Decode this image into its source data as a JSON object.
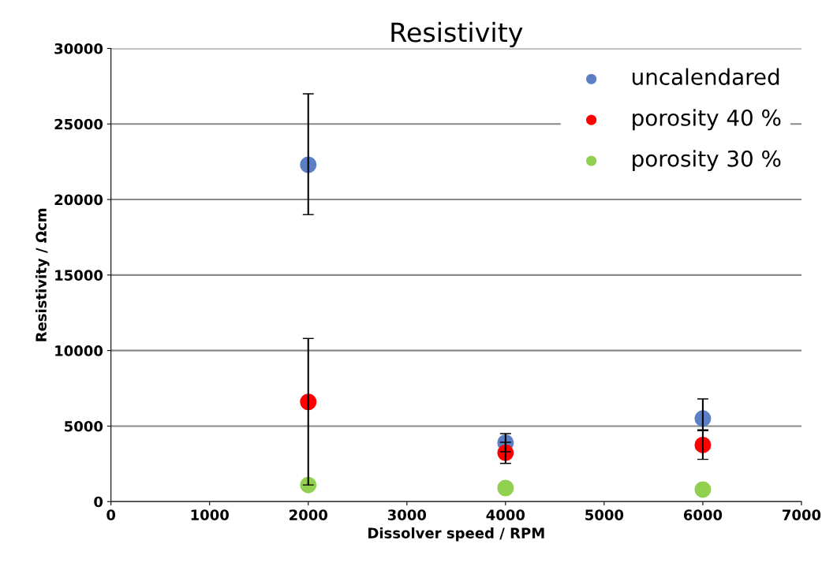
{
  "chart_data": {
    "type": "scatter",
    "title": "Resistivity",
    "xlabel": "Dissolver speed / RPM",
    "ylabel": "Resistivity / Ωcm",
    "x": [
      2000,
      4000,
      6000
    ],
    "series": [
      {
        "name": "uncalendared",
        "color": "#5b7fc4",
        "values": [
          22300,
          3900,
          5500
        ],
        "errors": [
          [
            19000,
            27000
          ],
          600,
          [
            4750,
            6800
          ]
        ]
      },
      {
        "name": "porosity 40 %",
        "color": "#ff0000",
        "values": [
          6600,
          3230,
          3750
        ],
        "errors": [
          [
            1100,
            10800
          ],
          700,
          950
        ]
      },
      {
        "name": "porosity 30 %",
        "color": "#92d050",
        "values": [
          1100,
          900,
          800
        ]
      }
    ],
    "xlim": [
      0,
      7000
    ],
    "xticks": [
      0,
      1000,
      2000,
      3000,
      4000,
      5000,
      6000,
      7000
    ],
    "ylim": [
      0,
      30000
    ],
    "yticks": [
      0,
      5000,
      10000,
      15000,
      20000,
      25000,
      30000
    ],
    "grid": "y",
    "legend": "top right",
    "marker": "circle"
  }
}
